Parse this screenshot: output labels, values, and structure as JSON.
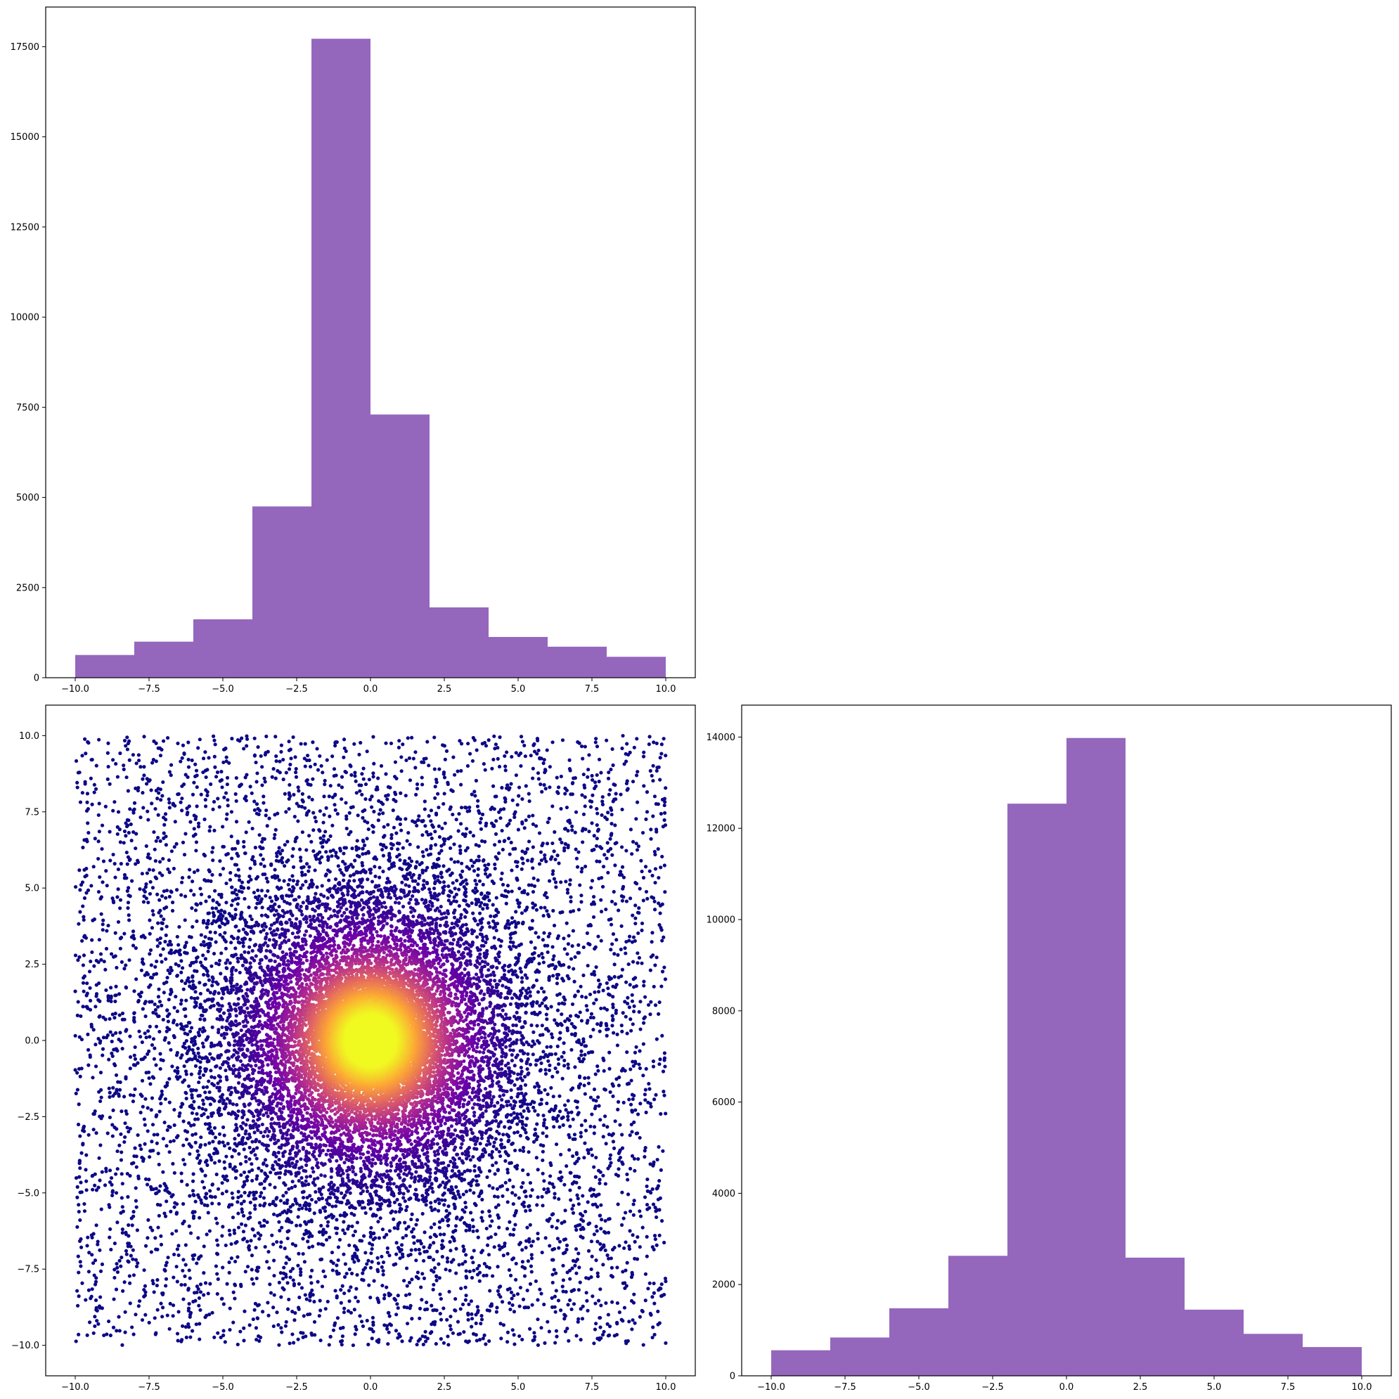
{
  "chart_data": [
    {
      "type": "bar",
      "subtype": "histogram",
      "panel": "top-left",
      "bin_edges": [
        -10,
        -8,
        -6,
        -4,
        -2,
        0,
        2,
        4,
        6,
        8,
        10
      ],
      "values": [
        630,
        1000,
        1620,
        4750,
        17720,
        7300,
        1950,
        1130,
        860,
        580
      ],
      "xlim": [
        -11,
        11
      ],
      "ylim": [
        0,
        18600
      ],
      "xticks": [
        -10,
        -7.5,
        -5,
        -2.5,
        0,
        2.5,
        5,
        7.5,
        10
      ],
      "xtick_labels": [
        "−10.0",
        "−7.5",
        "−5.0",
        "−2.5",
        "0.0",
        "2.5",
        "5.0",
        "7.5",
        "10.0"
      ],
      "yticks": [
        0,
        2500,
        5000,
        7500,
        10000,
        12500,
        15000,
        17500
      ],
      "ytick_labels": [
        "0",
        "2500",
        "5000",
        "7500",
        "10000",
        "12500",
        "15000",
        "17500"
      ],
      "color": "#9467bd",
      "title": "",
      "xlabel": "",
      "ylabel": ""
    },
    {
      "type": "scatter",
      "panel": "bottom-left",
      "x_range": [
        -10,
        10
      ],
      "y_range": [
        -10,
        10
      ],
      "xlim": [
        -11,
        11
      ],
      "ylim": [
        -11,
        11
      ],
      "colormap": "plasma",
      "color_by": "density",
      "dense_center": [
        0,
        0
      ],
      "xticks": [
        -10,
        -7.5,
        -5,
        -2.5,
        0,
        2.5,
        5,
        7.5,
        10
      ],
      "xtick_labels": [
        "−10.0",
        "−7.5",
        "−5.0",
        "−2.5",
        "0.0",
        "2.5",
        "5.0",
        "7.5",
        "10.0"
      ],
      "yticks": [
        -10,
        -7.5,
        -5,
        -2.5,
        0,
        2.5,
        5,
        7.5,
        10
      ],
      "ytick_labels": [
        "−10.0",
        "−7.5",
        "−5.0",
        "−2.5",
        "0.0",
        "2.5",
        "5.0",
        "7.5",
        "10.0"
      ],
      "colors": [
        "#0d0887",
        "#6a00a8",
        "#b12a90",
        "#e16462",
        "#fca636",
        "#f0f921"
      ],
      "title": "",
      "xlabel": "",
      "ylabel": ""
    },
    {
      "type": "bar",
      "subtype": "histogram",
      "panel": "bottom-right",
      "bin_edges": [
        -10,
        -8,
        -6,
        -4,
        -2,
        0,
        2,
        4,
        6,
        8,
        10
      ],
      "values": [
        560,
        840,
        1480,
        2630,
        12540,
        13980,
        2590,
        1450,
        920,
        630
      ],
      "xlim": [
        -11,
        11
      ],
      "ylim": [
        0,
        14700
      ],
      "xticks": [
        -10,
        -7.5,
        -5,
        -2.5,
        0,
        2.5,
        5,
        7.5,
        10
      ],
      "xtick_labels": [
        "−10.0",
        "−7.5",
        "−5.0",
        "−2.5",
        "0.0",
        "2.5",
        "5.0",
        "7.5",
        "10.0"
      ],
      "yticks": [
        0,
        2000,
        4000,
        6000,
        8000,
        10000,
        12000,
        14000
      ],
      "ytick_labels": [
        "0",
        "2000",
        "4000",
        "6000",
        "8000",
        "10000",
        "12000",
        "14000"
      ],
      "color": "#9467bd",
      "title": "",
      "xlabel": "",
      "ylabel": ""
    }
  ]
}
